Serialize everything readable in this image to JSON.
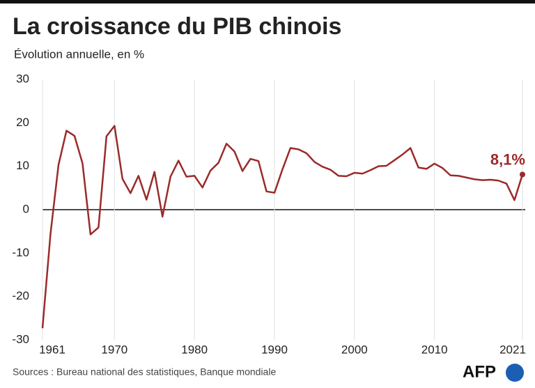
{
  "chart_data": {
    "type": "line",
    "title": "La croissance du PIB chinois",
    "subtitle": "Évolution annuelle, en %",
    "source": "Sources : Bureau national des statistiques, Banque mondiale",
    "logo": "AFP",
    "x": [
      1961,
      1962,
      1963,
      1964,
      1965,
      1966,
      1967,
      1968,
      1969,
      1970,
      1971,
      1972,
      1973,
      1974,
      1975,
      1976,
      1977,
      1978,
      1979,
      1980,
      1981,
      1982,
      1983,
      1984,
      1985,
      1986,
      1987,
      1988,
      1989,
      1990,
      1991,
      1992,
      1993,
      1994,
      1995,
      1996,
      1997,
      1998,
      1999,
      2000,
      2001,
      2002,
      2003,
      2004,
      2005,
      2006,
      2007,
      2008,
      2009,
      2010,
      2011,
      2012,
      2013,
      2014,
      2015,
      2016,
      2017,
      2018,
      2019,
      2020,
      2021
    ],
    "series": [
      {
        "color": "#9b2a2a",
        "values": [
          -27.3,
          -5.6,
          10.3,
          18.2,
          17.0,
          10.7,
          -5.7,
          -4.1,
          16.9,
          19.3,
          7.1,
          3.8,
          7.8,
          2.3,
          8.7,
          -1.6,
          7.6,
          11.3,
          7.6,
          7.8,
          5.1,
          9.0,
          10.8,
          15.2,
          13.4,
          8.9,
          11.7,
          11.2,
          4.2,
          3.9,
          9.3,
          14.2,
          13.9,
          13.0,
          11.0,
          9.9,
          9.2,
          7.8,
          7.7,
          8.5,
          8.3,
          9.1,
          10.0,
          10.1,
          11.4,
          12.7,
          14.2,
          9.7,
          9.4,
          10.6,
          9.6,
          7.9,
          7.8,
          7.4,
          7.0,
          6.8,
          6.9,
          6.7,
          6.0,
          2.2,
          8.1
        ],
        "value_labels": [
          null,
          null,
          null,
          null,
          null,
          null,
          null,
          null,
          null,
          null,
          null,
          null,
          null,
          null,
          null,
          null,
          null,
          null,
          null,
          null,
          null,
          null,
          null,
          null,
          null,
          null,
          null,
          null,
          null,
          null,
          null,
          null,
          null,
          null,
          null,
          null,
          null,
          null,
          null,
          null,
          null,
          null,
          null,
          null,
          null,
          null,
          null,
          null,
          null,
          null,
          null,
          null,
          null,
          null,
          null,
          null,
          null,
          null,
          null,
          null,
          "8,1%"
        ]
      }
    ],
    "xlim": [
      1961,
      2021
    ],
    "xticks": [
      1961,
      1970,
      1980,
      1990,
      2000,
      2010,
      2021
    ],
    "ylim": [
      -30,
      30
    ],
    "yticks": [
      30,
      20,
      10,
      0,
      -10,
      -20,
      -30
    ],
    "grid": true
  }
}
